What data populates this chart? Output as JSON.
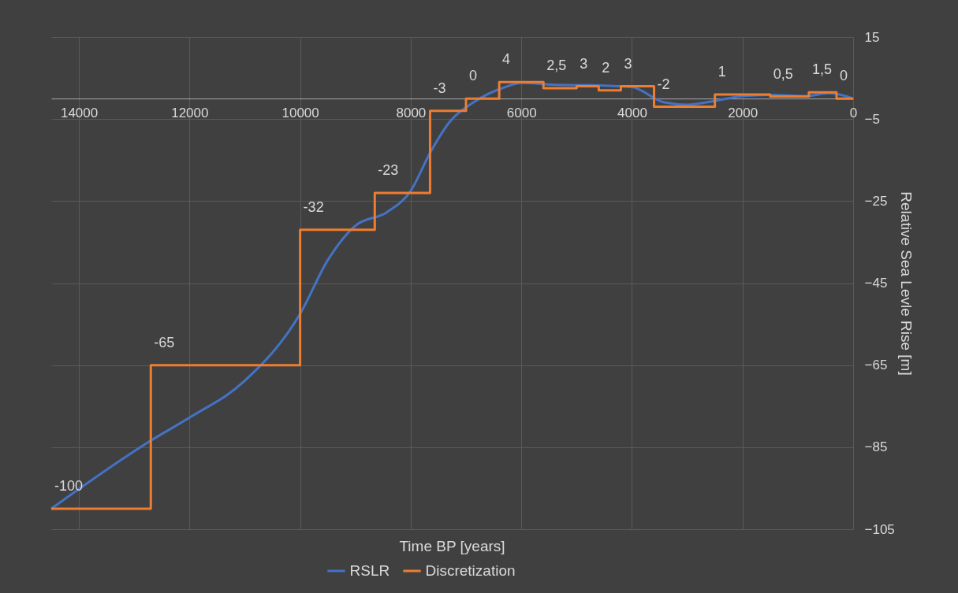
{
  "chart_data": {
    "type": "line",
    "xlabel": "Time BP [years]",
    "ylabel": "Relative Sea Levle Rise [m]",
    "xlim": [
      14500,
      0
    ],
    "xticks": [
      14000,
      12000,
      10000,
      8000,
      6000,
      4000,
      2000,
      0
    ],
    "ylim": [
      -105,
      15
    ],
    "yticks": [
      -105,
      -85,
      -65,
      -45,
      -25,
      -5,
      15
    ],
    "grid": true,
    "legend": "bottom",
    "series": [
      {
        "name": "RSLR",
        "type": "line",
        "color": "#4472c4",
        "x": [
          14500,
          12700,
          12000,
          11000,
          10000,
          9500,
          9000,
          8430,
          8000,
          7640,
          7290,
          6860,
          6290,
          6000,
          5430,
          4570,
          4000,
          3430,
          3000,
          2430,
          2000,
          1500,
          860,
          430,
          0
        ],
        "values": [
          -100,
          -83.4,
          -77.8,
          -68.8,
          -52.5,
          -39.4,
          -31,
          -27.7,
          -22.5,
          -13,
          -5.6,
          -0.9,
          2.8,
          3.8,
          3.4,
          3.2,
          2.8,
          -0.9,
          -1.5,
          -0.4,
          0.6,
          0.9,
          0.6,
          1.3,
          0
        ]
      },
      {
        "name": "Discretization",
        "type": "step",
        "color": "#ed7d31",
        "x": [
          14500,
          12700,
          10000,
          8650,
          7650,
          7000,
          6400,
          5600,
          5000,
          4600,
          4200,
          3600,
          2500,
          1500,
          800,
          300,
          0
        ],
        "values": [
          -100,
          -65,
          -32,
          -23,
          -3,
          0,
          4,
          2.5,
          3,
          2,
          3,
          -2,
          1,
          0.5,
          1.5,
          0,
          0
        ],
        "value_labels": [
          "-100",
          "-65",
          "-32",
          "-23",
          "-3",
          "0",
          "4",
          "2,5",
          "3",
          "2",
          "3",
          "-2",
          "1",
          "0,5",
          "1,5",
          "0",
          null
        ]
      }
    ]
  }
}
